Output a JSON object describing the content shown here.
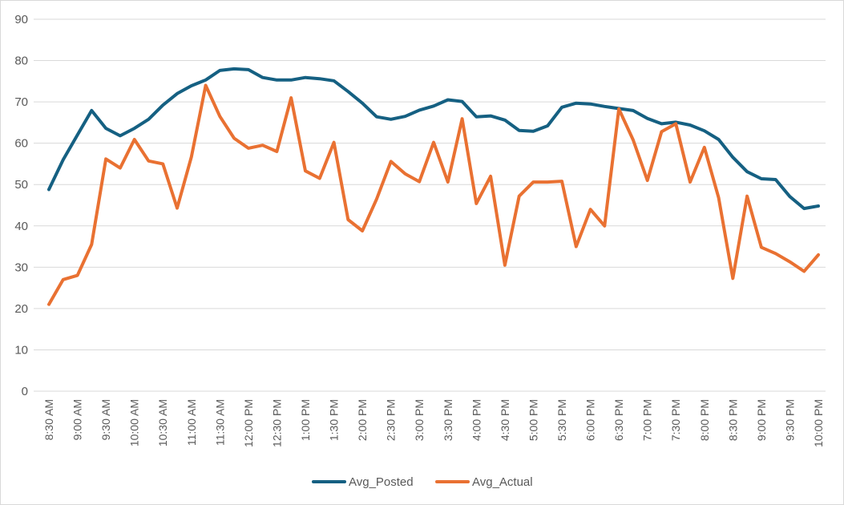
{
  "chart_data": {
    "type": "line",
    "title": "",
    "xlabel": "",
    "ylabel": "",
    "ylim": [
      0,
      90
    ],
    "y_ticks": [
      0,
      10,
      20,
      30,
      40,
      50,
      60,
      70,
      80,
      90
    ],
    "grid": true,
    "legend_position": "bottom",
    "x": [
      "8:30 AM",
      "8:45 AM",
      "9:00 AM",
      "9:15 AM",
      "9:30 AM",
      "9:45 AM",
      "10:00 AM",
      "10:15 AM",
      "10:30 AM",
      "10:45 AM",
      "11:00 AM",
      "11:15 AM",
      "11:30 AM",
      "11:45 AM",
      "12:00 PM",
      "12:15 PM",
      "12:30 PM",
      "12:45 PM",
      "1:00 PM",
      "1:15 PM",
      "1:30 PM",
      "1:45 PM",
      "2:00 PM",
      "2:15 PM",
      "2:30 PM",
      "2:45 PM",
      "3:00 PM",
      "3:15 PM",
      "3:30 PM",
      "3:45 PM",
      "4:00 PM",
      "4:15 PM",
      "4:30 PM",
      "4:45 PM",
      "5:00 PM",
      "5:15 PM",
      "5:30 PM",
      "5:45 PM",
      "6:00 PM",
      "6:15 PM",
      "6:30 PM",
      "6:45 PM",
      "7:00 PM",
      "7:15 PM",
      "7:30 PM",
      "7:45 PM",
      "8:00 PM",
      "8:15 PM",
      "8:30 PM",
      "8:45 PM",
      "9:00 PM",
      "9:15 PM",
      "9:30 PM",
      "9:45 PM",
      "10:00 PM"
    ],
    "x_tick_labels": [
      "8:30 AM",
      "9:00 AM",
      "9:30 AM",
      "10:00 AM",
      "10:30 AM",
      "11:00 AM",
      "11:30 AM",
      "12:00 PM",
      "12:30 PM",
      "1:00 PM",
      "1:30 PM",
      "2:00 PM",
      "2:30 PM",
      "3:00 PM",
      "3:30 PM",
      "4:00 PM",
      "4:30 PM",
      "5:00 PM",
      "5:30 PM",
      "6:00 PM",
      "6:30 PM",
      "7:00 PM",
      "7:30 PM",
      "8:00 PM",
      "8:30 PM",
      "9:00 PM",
      "9:30 PM",
      "10:00 PM"
    ],
    "series": [
      {
        "name": "Avg_Posted",
        "color": "#156082",
        "values": [
          48.8,
          56.0,
          62.0,
          67.9,
          63.6,
          61.8,
          63.6,
          65.8,
          69.2,
          72.0,
          73.9,
          75.3,
          77.6,
          78.0,
          77.8,
          75.9,
          75.3,
          75.3,
          75.9,
          75.6,
          75.1,
          72.5,
          69.7,
          66.4,
          65.8,
          66.5,
          68.0,
          69.0,
          70.5,
          70.1,
          66.4,
          66.6,
          65.6,
          63.1,
          62.9,
          64.2,
          68.7,
          69.7,
          69.5,
          68.9,
          68.4,
          67.9,
          66.0,
          64.7,
          65.1,
          64.4,
          63.0,
          60.9,
          56.6,
          53.1,
          51.4,
          51.2,
          47.1,
          44.2,
          44.8
        ]
      },
      {
        "name": "Avg_Actual",
        "color": "#E97132",
        "values": [
          21.0,
          27.0,
          28.0,
          35.5,
          56.2,
          54.0,
          60.9,
          55.7,
          55.0,
          44.3,
          56.7,
          74.0,
          66.5,
          61.2,
          58.8,
          59.5,
          58.0,
          71.0,
          53.3,
          51.5,
          60.2,
          41.5,
          38.8,
          46.5,
          55.6,
          52.6,
          50.7,
          60.2,
          50.6,
          65.9,
          45.4,
          52.0,
          30.5,
          47.2,
          50.6,
          50.6,
          50.8,
          35.0,
          44.0,
          40.0,
          68.3,
          60.8,
          51.0,
          62.8,
          64.7,
          50.6,
          59.0,
          46.8,
          27.3,
          47.2,
          34.8,
          33.3,
          31.3,
          29.0,
          33.0
        ]
      }
    ]
  }
}
